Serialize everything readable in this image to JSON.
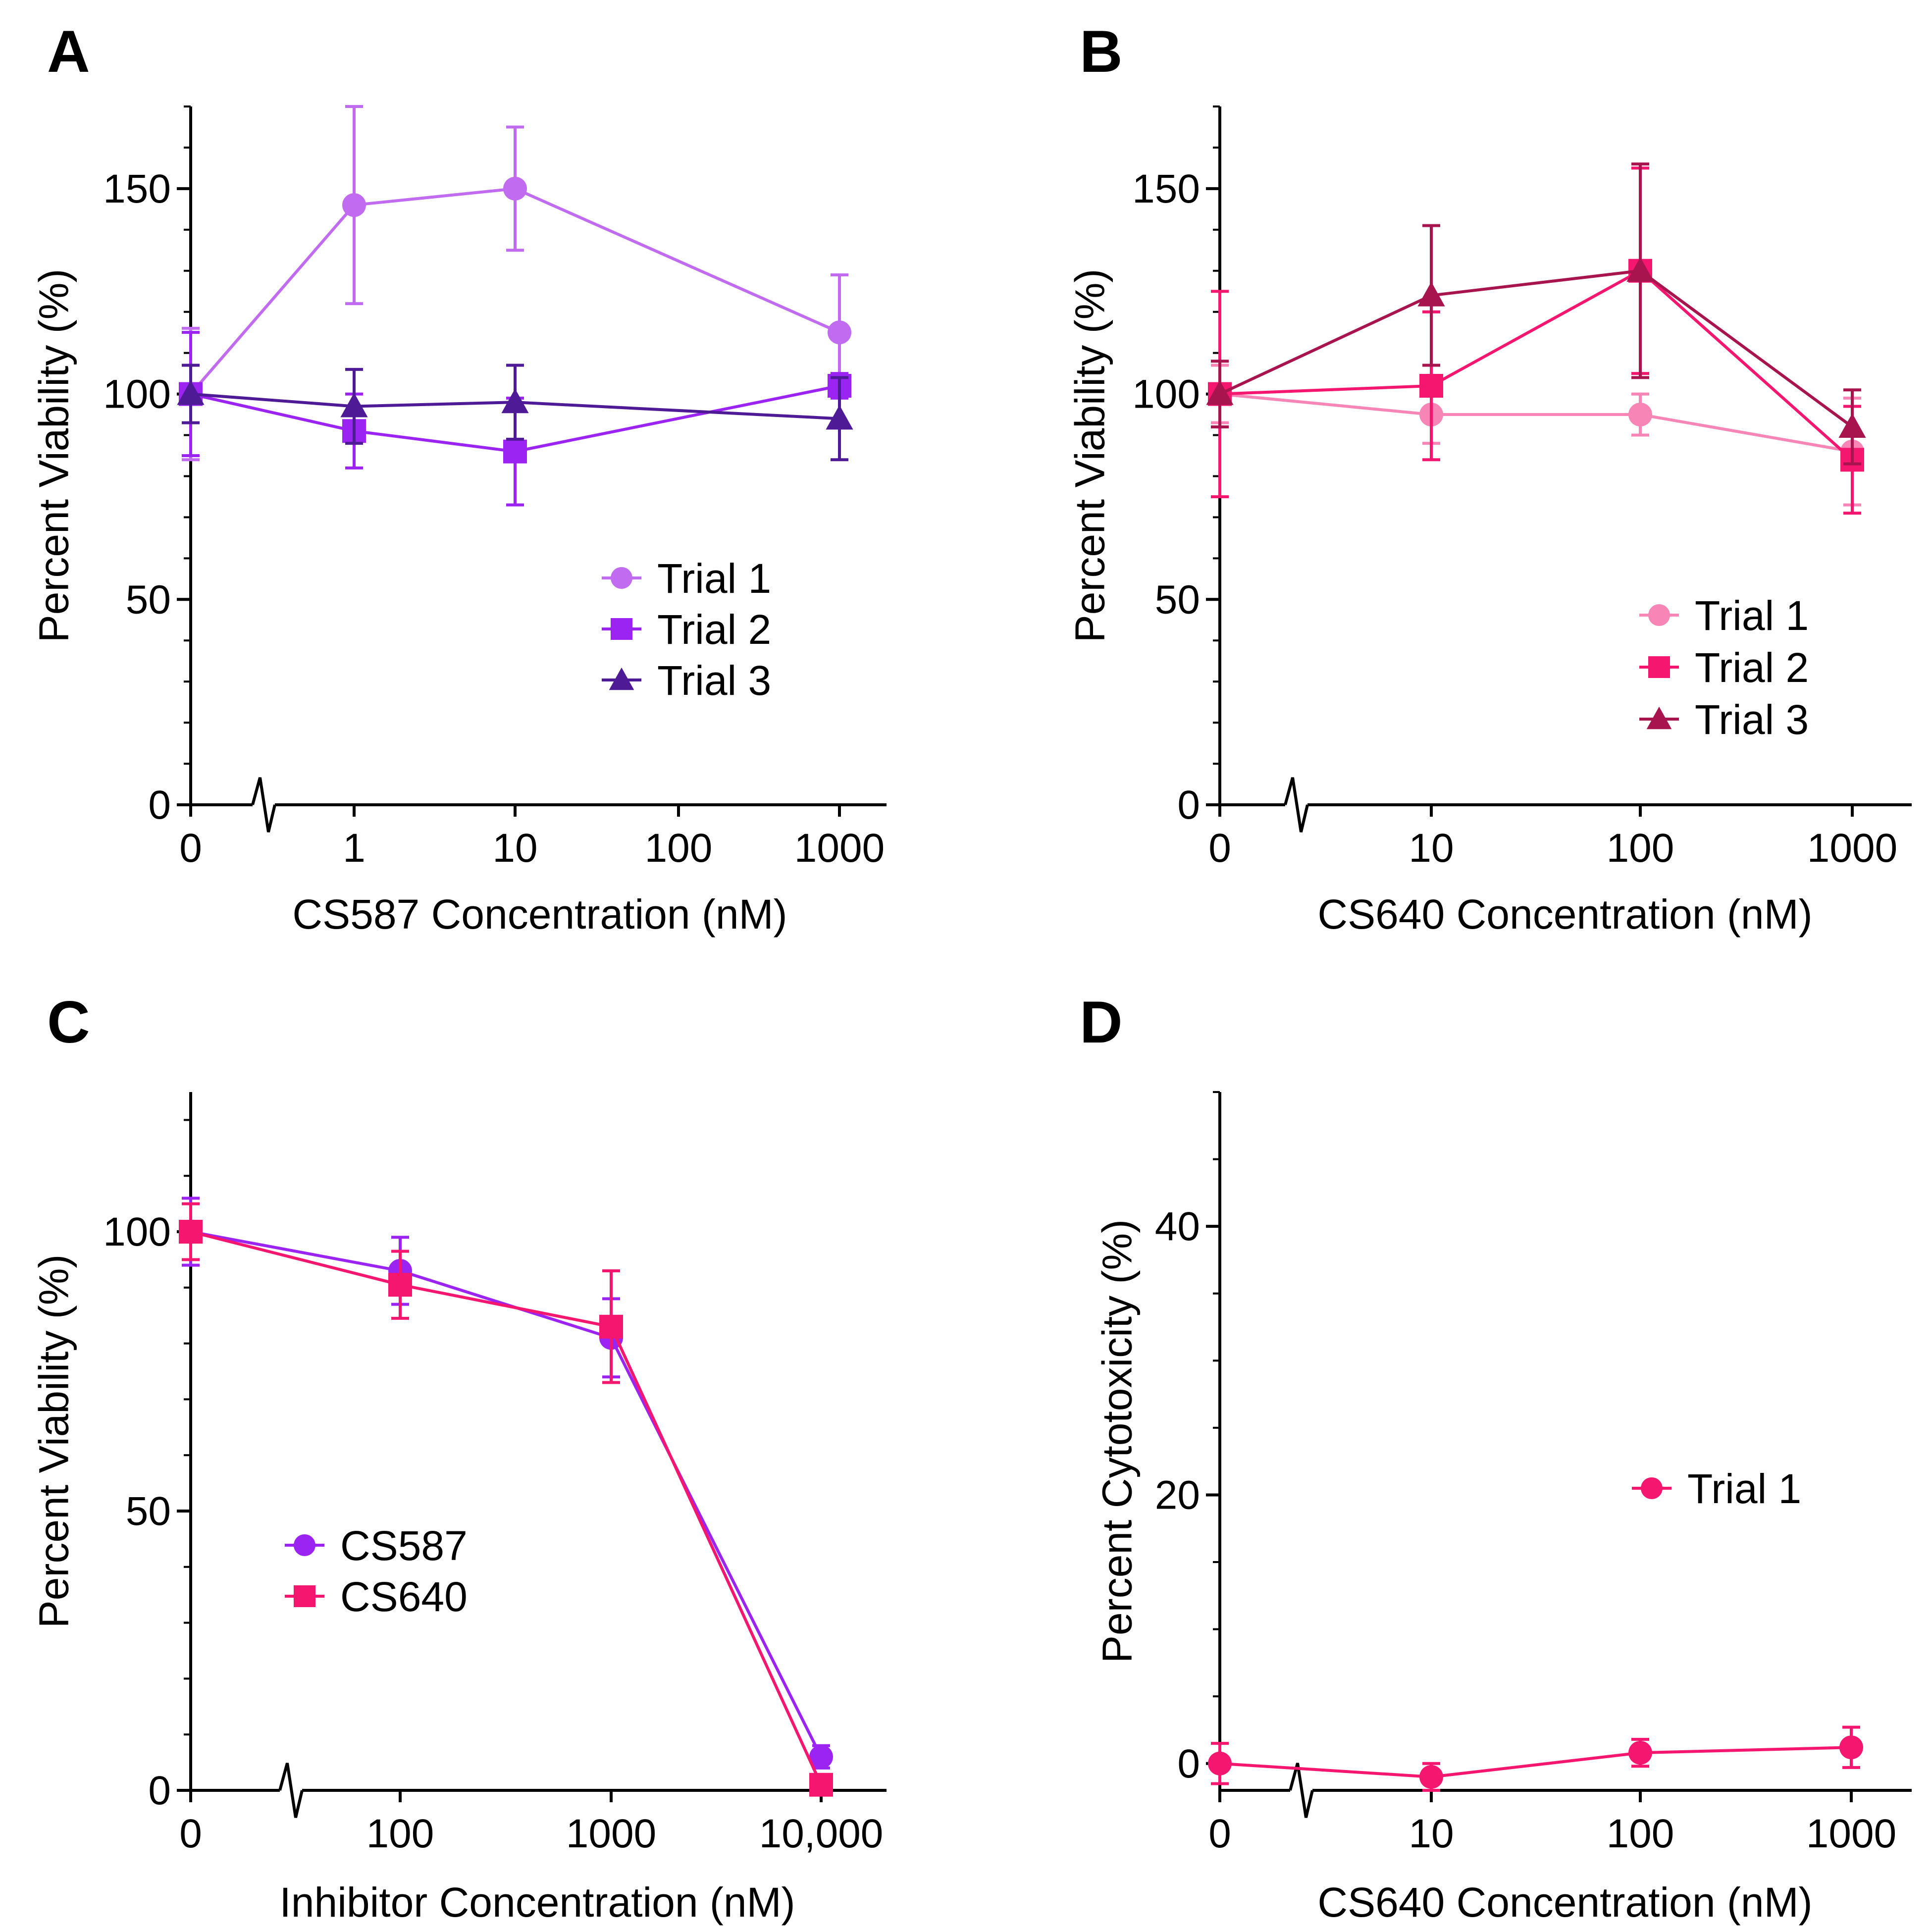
{
  "figure": {
    "panels": [
      {
        "letter": "A"
      },
      {
        "letter": "B"
      },
      {
        "letter": "C"
      },
      {
        "letter": "D"
      }
    ]
  },
  "chart_data": [
    {
      "panel": "A",
      "type": "line",
      "xlabel": "CS587 Concentration (nM)",
      "ylabel": "Percent Viability (%)",
      "x_categories": [
        "0",
        "1",
        "10",
        "100",
        "1000"
      ],
      "ylim": [
        0,
        170
      ],
      "yticks_major": [
        "0",
        "50",
        "100",
        "150"
      ],
      "ytick_values": [
        0,
        50,
        100,
        150
      ],
      "y_minor_step": 10,
      "axis_break": "between 0 and 1",
      "legend_position": "center-right",
      "series": [
        {
          "name": "Trial 1",
          "marker": "circle",
          "color": "#c16cf0",
          "x_index": [
            0,
            1,
            2,
            4
          ],
          "values": [
            100,
            146,
            150,
            115
          ],
          "errors": [
            16,
            24,
            15,
            14
          ]
        },
        {
          "name": "Trial 2",
          "marker": "square",
          "color": "#9b24f2",
          "x_index": [
            0,
            1,
            2,
            4
          ],
          "values": [
            100,
            91,
            86,
            102
          ],
          "errors": [
            15,
            9,
            13,
            3
          ]
        },
        {
          "name": "Trial 3",
          "marker": "triangle",
          "color": "#4f1a96",
          "x_index": [
            0,
            1,
            2,
            4
          ],
          "values": [
            100,
            97,
            98,
            94
          ],
          "errors": [
            7,
            9,
            9,
            10
          ]
        }
      ]
    },
    {
      "panel": "B",
      "type": "line",
      "xlabel": "CS640 Concentration (nM)",
      "ylabel": "Percent Viability (%)",
      "x_categories": [
        "0",
        "10",
        "100",
        "1000"
      ],
      "ylim": [
        0,
        170
      ],
      "yticks_major": [
        "0",
        "50",
        "100",
        "150"
      ],
      "ytick_values": [
        0,
        50,
        100,
        150
      ],
      "y_minor_step": 10,
      "axis_break": "between 0 and 10",
      "legend_position": "lower-right",
      "series": [
        {
          "name": "Trial 1",
          "marker": "circle",
          "color": "#f785b6",
          "x_index": [
            0,
            1,
            2,
            3
          ],
          "values": [
            100,
            95,
            95,
            86
          ],
          "errors": [
            7,
            7,
            5,
            13
          ]
        },
        {
          "name": "Trial 2",
          "marker": "square",
          "color": "#f5176f",
          "x_index": [
            0,
            1,
            2,
            3
          ],
          "values": [
            100,
            102,
            130,
            84
          ],
          "errors": [
            25,
            18,
            25,
            13
          ]
        },
        {
          "name": "Trial 3",
          "marker": "triangle",
          "color": "#a8144e",
          "x_index": [
            0,
            1,
            2,
            3
          ],
          "values": [
            100,
            124,
            130,
            92
          ],
          "errors": [
            8,
            17,
            26,
            9
          ]
        }
      ]
    },
    {
      "panel": "C",
      "type": "line",
      "xlabel": "Inhibitor Concentration (nM)",
      "ylabel": "Percent Viability (%)",
      "x_categories": [
        "0",
        "100",
        "1000",
        "10,000"
      ],
      "ylim": [
        0,
        125
      ],
      "yticks_major": [
        "0",
        "50",
        "100"
      ],
      "ytick_values": [
        0,
        50,
        100
      ],
      "y_minor_step": 10,
      "axis_break": "between 0 and 100",
      "legend_position": "center-left",
      "series": [
        {
          "name": "CS587",
          "marker": "circle",
          "color": "#9b24f2",
          "x_index": [
            0,
            1,
            2,
            3
          ],
          "values": [
            100,
            93,
            81,
            6
          ],
          "errors": [
            6,
            6,
            7,
            2
          ]
        },
        {
          "name": "CS640",
          "marker": "square",
          "color": "#f5176f",
          "x_index": [
            0,
            1,
            2,
            3
          ],
          "values": [
            100,
            90.5,
            83,
            1
          ],
          "errors": [
            5,
            6,
            10,
            1
          ]
        }
      ]
    },
    {
      "panel": "D",
      "type": "line",
      "xlabel": "CS640 Concentration (nM)",
      "ylabel": "Percent Cytotoxicity (%)",
      "x_categories": [
        "0",
        "10",
        "100",
        "1000"
      ],
      "ylim": [
        -2,
        50
      ],
      "yticks_major": [
        "0",
        "20",
        "40"
      ],
      "ytick_values": [
        0,
        20,
        40
      ],
      "y_minor_step": 5,
      "axis_break": "between 0 and 10",
      "legend_position": "center-right",
      "series": [
        {
          "name": "Trial 1",
          "marker": "circle",
          "color": "#f5176f",
          "x_index": [
            0,
            1,
            2,
            3
          ],
          "values": [
            0,
            -1,
            0.8,
            1.2
          ],
          "errors": [
            1.5,
            1,
            1,
            1.5
          ]
        }
      ]
    }
  ]
}
